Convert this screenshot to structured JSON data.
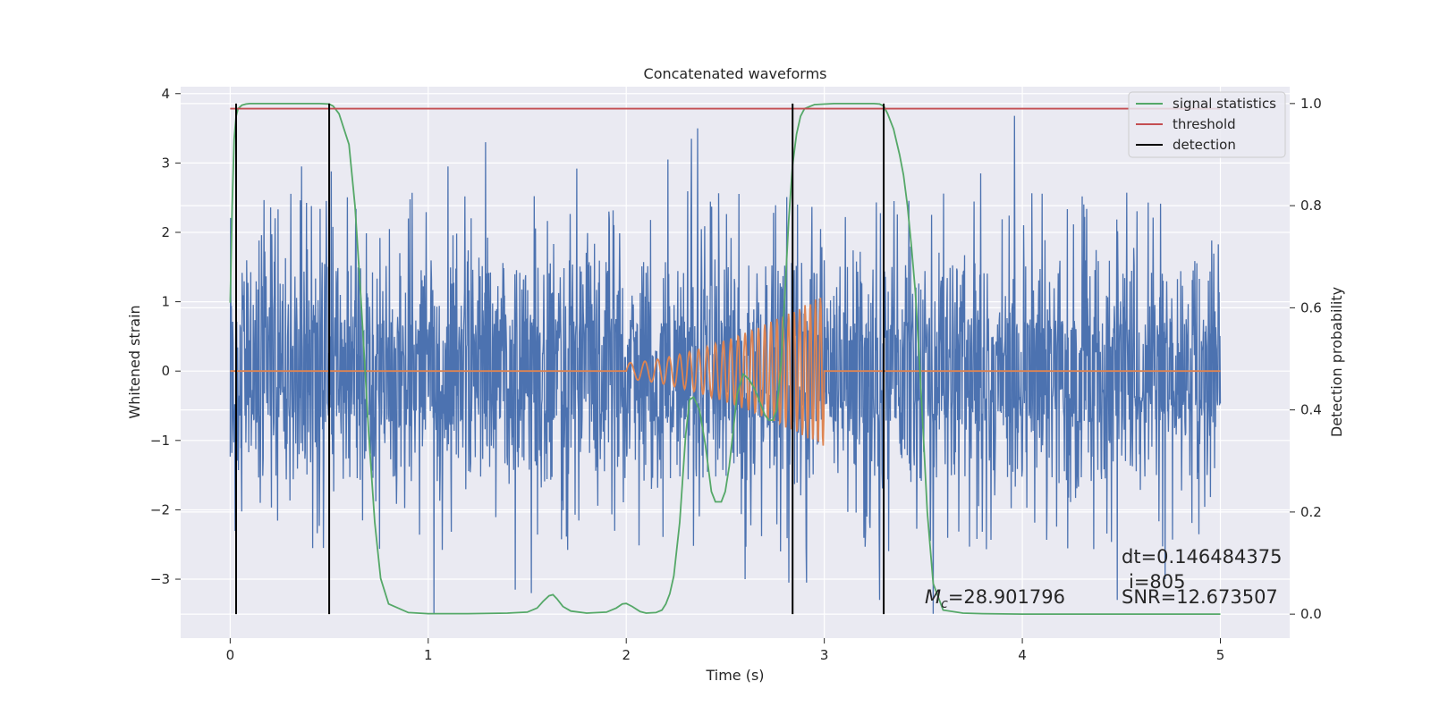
{
  "chart_data": {
    "type": "line",
    "title": "Concatenated waveforms",
    "xlabel": "Time (s)",
    "ylabel": "Whitened strain",
    "y2label": "Detection probability",
    "xlim": [
      -0.25,
      5.35
    ],
    "ylim": [
      -3.85,
      4.1
    ],
    "y2lim": [
      -0.047,
      1.033
    ],
    "xticks": [
      0,
      1,
      2,
      3,
      4,
      5
    ],
    "xtick_labels": [
      "0",
      "1",
      "2",
      "3",
      "4",
      "5"
    ],
    "yticks": [
      -3,
      -2,
      -1,
      0,
      1,
      2,
      3,
      4
    ],
    "ytick_labels": [
      "−3",
      "−2",
      "−1",
      "0",
      "1",
      "2",
      "3",
      "4"
    ],
    "y2ticks": [
      0.0,
      0.2,
      0.4,
      0.6,
      0.8,
      1.0
    ],
    "y2tick_labels": [
      "0.0",
      "0.2",
      "0.4",
      "0.6",
      "0.8",
      "1.0"
    ],
    "grid": true,
    "legend_position": "top-right",
    "legend": [
      {
        "label": "signal statistics",
        "color": "#55a868"
      },
      {
        "label": "threshold",
        "color": "#c44e52"
      },
      {
        "label": "detection",
        "color": "#000000"
      }
    ],
    "series": [
      {
        "name": "strain",
        "color": "#4c72b0",
        "axis": "left",
        "description_values": {
          "x_start": 0,
          "x_end": 5,
          "approx_range": [
            -3.5,
            3.7
          ]
        },
        "peaks": [
          {
            "x": 0.03,
            "y": -2.4
          },
          {
            "x": 0.36,
            "y": 2.95
          },
          {
            "x": 0.47,
            "y": -2.55
          },
          {
            "x": 0.51,
            "y": 2.88
          },
          {
            "x": 0.9,
            "y": 2.2
          },
          {
            "x": 1.03,
            "y": -3.5
          },
          {
            "x": 1.1,
            "y": 2.95
          },
          {
            "x": 1.29,
            "y": 3.3
          },
          {
            "x": 1.44,
            "y": -3.15
          },
          {
            "x": 1.52,
            "y": -3.2
          },
          {
            "x": 1.75,
            "y": 2.92
          },
          {
            "x": 2.21,
            "y": 3.05
          },
          {
            "x": 2.33,
            "y": 3.35
          },
          {
            "x": 2.36,
            "y": 3.5
          },
          {
            "x": 2.6,
            "y": -3.0
          },
          {
            "x": 2.78,
            "y": -2.6
          },
          {
            "x": 2.82,
            "y": -3.05
          },
          {
            "x": 2.91,
            "y": -3.05
          },
          {
            "x": 3.28,
            "y": -3.3
          },
          {
            "x": 3.55,
            "y": -3.5
          },
          {
            "x": 3.79,
            "y": 2.85
          },
          {
            "x": 3.96,
            "y": 3.68
          },
          {
            "x": 4.48,
            "y": -3.3
          },
          {
            "x": 4.72,
            "y": -3.0
          }
        ]
      },
      {
        "name": "waveform",
        "color": "#dd8452",
        "axis": "left",
        "chirp": {
          "x_start": 2.0,
          "x_end": 3.0,
          "amp_start": 0.12,
          "amp_end": 1.1,
          "freq_start": 12,
          "freq_end": 40
        }
      },
      {
        "name": "signal statistics",
        "color": "#55a868",
        "axis": "right",
        "x": [
          0,
          0.01,
          0.02,
          0.03,
          0.04,
          0.06,
          0.08,
          0.1,
          0.15,
          0.2,
          0.3,
          0.4,
          0.45,
          0.5,
          0.52,
          0.55,
          0.6,
          0.63,
          0.66,
          0.7,
          0.73,
          0.76,
          0.8,
          0.9,
          1.0,
          1.2,
          1.4,
          1.5,
          1.55,
          1.58,
          1.61,
          1.63,
          1.65,
          1.68,
          1.72,
          1.8,
          1.9,
          1.95,
          1.98,
          2.0,
          2.03,
          2.07,
          2.1,
          2.15,
          2.18,
          2.2,
          2.22,
          2.24,
          2.27,
          2.3,
          2.32,
          2.34,
          2.37,
          2.4,
          2.43,
          2.45,
          2.48,
          2.5,
          2.52,
          2.54,
          2.56,
          2.59,
          2.62,
          2.65,
          2.68,
          2.7,
          2.72,
          2.74,
          2.76,
          2.78,
          2.8,
          2.82,
          2.84,
          2.86,
          2.88,
          2.9,
          2.95,
          3.05,
          3.15,
          3.2,
          3.25,
          3.28,
          3.3,
          3.32,
          3.35,
          3.38,
          3.4,
          3.42,
          3.44,
          3.46,
          3.48,
          3.5,
          3.52,
          3.55,
          3.6,
          3.7,
          3.8,
          4.0,
          4.5,
          5.0
        ],
        "y": [
          0.61,
          0.8,
          0.93,
          0.975,
          0.99,
          0.997,
          0.999,
          1.0,
          1.0,
          1.0,
          1.0,
          1.0,
          1.0,
          0.999,
          0.995,
          0.98,
          0.92,
          0.8,
          0.62,
          0.35,
          0.18,
          0.07,
          0.02,
          0.003,
          0.001,
          0.001,
          0.002,
          0.004,
          0.012,
          0.025,
          0.036,
          0.038,
          0.03,
          0.015,
          0.006,
          0.002,
          0.004,
          0.012,
          0.02,
          0.021,
          0.015,
          0.005,
          0.002,
          0.003,
          0.008,
          0.02,
          0.04,
          0.075,
          0.18,
          0.35,
          0.42,
          0.425,
          0.4,
          0.33,
          0.24,
          0.22,
          0.22,
          0.24,
          0.29,
          0.36,
          0.43,
          0.47,
          0.46,
          0.44,
          0.41,
          0.39,
          0.38,
          0.38,
          0.4,
          0.48,
          0.62,
          0.77,
          0.88,
          0.94,
          0.975,
          0.99,
          0.998,
          1.0,
          1.0,
          1.0,
          1.0,
          0.999,
          0.995,
          0.98,
          0.95,
          0.9,
          0.86,
          0.8,
          0.72,
          0.63,
          0.5,
          0.35,
          0.2,
          0.06,
          0.008,
          0.002,
          0.001,
          0.0,
          0.0,
          0.0
        ]
      },
      {
        "name": "threshold",
        "color": "#c44e52",
        "axis": "right",
        "x": [
          0,
          5
        ],
        "y": [
          0.99,
          0.99
        ]
      },
      {
        "name": "detection",
        "color": "#000000",
        "axis": "right",
        "x_positions": [
          0.03,
          0.5,
          2.84,
          3.3
        ],
        "y_range": [
          0,
          1
        ]
      }
    ],
    "annotations": [
      {
        "text": "dt=0.146484375",
        "x": 4.5,
        "y": -2.65
      },
      {
        "text": "i=805",
        "x": 4.53,
        "y": -3.0
      },
      {
        "text": "SNR=12.673507",
        "x": 4.5,
        "y": -3.3
      },
      {
        "text": "=28.901796",
        "prefix": "M",
        "prefix_sub": "c",
        "x": 3.5,
        "y": -3.3
      }
    ]
  }
}
